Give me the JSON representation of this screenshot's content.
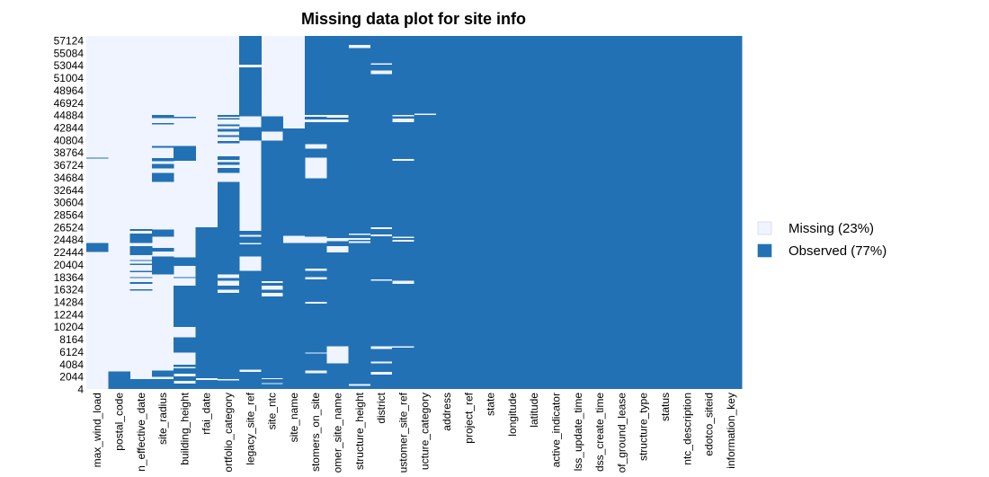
{
  "chart_data": {
    "type": "heatmap",
    "title": "Missing data plot for site info",
    "xlabel": "",
    "ylabel": "",
    "colors": {
      "missing": "#f0f4ff",
      "observed": "#2271b4"
    },
    "legend": {
      "placement": "right",
      "entries": [
        {
          "label": "Missing (23%)",
          "status": "missing"
        },
        {
          "label": "Observed (77%)",
          "status": "observed"
        }
      ]
    },
    "y_ticks": [
      "57124",
      "55084",
      "53044",
      "51004",
      "48964",
      "46924",
      "44884",
      "42844",
      "40804",
      "38764",
      "36724",
      "34684",
      "32644",
      "30604",
      "28564",
      "26524",
      "24484",
      "22444",
      "20404",
      "18364",
      "16324",
      "14284",
      "12244",
      "10204",
      "8164",
      "6124",
      "4084",
      "2044",
      "4"
    ],
    "y_range": [
      4,
      58000
    ],
    "columns": [
      {
        "name": "max_wind_load",
        "observed": [
          [
            22500,
            24000
          ],
          [
            37900,
            38000
          ]
        ]
      },
      {
        "name": "postal_code",
        "observed": [
          [
            0,
            2900
          ]
        ]
      },
      {
        "name": "n_effective_date",
        "observed": [
          [
            0,
            1600
          ],
          [
            16200,
            16400
          ],
          [
            17300,
            17600
          ],
          [
            18200,
            18400
          ],
          [
            19200,
            19400
          ],
          [
            20400,
            20600
          ],
          [
            21000,
            21200
          ],
          [
            22000,
            23500
          ],
          [
            24000,
            25500
          ],
          [
            26000,
            26300
          ]
        ]
      },
      {
        "name": "site_radius",
        "observed": [
          [
            0,
            1600
          ],
          [
            2000,
            3000
          ],
          [
            18800,
            21800
          ],
          [
            22600,
            23200
          ],
          [
            25000,
            26200
          ],
          [
            34000,
            35500
          ],
          [
            36200,
            37000
          ],
          [
            37400,
            37900
          ],
          [
            39600,
            39900
          ],
          [
            43500,
            43700
          ],
          [
            44500,
            45000
          ]
        ]
      },
      {
        "name": "building_height",
        "observed": [
          [
            0,
            900
          ],
          [
            1300,
            2100
          ],
          [
            2500,
            3400
          ],
          [
            3600,
            4000
          ],
          [
            6000,
            8500
          ],
          [
            10200,
            17000
          ],
          [
            18200,
            18400
          ],
          [
            20200,
            21600
          ],
          [
            37500,
            39900
          ],
          [
            44500,
            44700
          ]
        ]
      },
      {
        "name": "rfai_date",
        "observed": [
          [
            0,
            1500
          ],
          [
            1800,
            26600
          ]
        ]
      },
      {
        "name": "ortfolio_category",
        "observed": [
          [
            0,
            1400
          ],
          [
            1600,
            15800
          ],
          [
            16300,
            17000
          ],
          [
            17800,
            18200
          ],
          [
            18800,
            34000
          ],
          [
            35500,
            36300
          ],
          [
            36800,
            37300
          ],
          [
            37600,
            38200
          ],
          [
            40400,
            40700
          ],
          [
            41400,
            41700
          ],
          [
            42300,
            42700
          ],
          [
            43200,
            43500
          ],
          [
            44300,
            44500
          ],
          [
            44700,
            45000
          ]
        ]
      },
      {
        "name": "legacy_site_ref",
        "observed": [
          [
            0,
            2800
          ],
          [
            3200,
            19400
          ],
          [
            21800,
            23800
          ],
          [
            24000,
            25000
          ],
          [
            25300,
            26000
          ],
          [
            40800,
            43000
          ],
          [
            44800,
            52800
          ],
          [
            53300,
            58000
          ]
        ]
      },
      {
        "name": "site_ntc",
        "observed": [
          [
            0,
            800
          ],
          [
            1000,
            1600
          ],
          [
            1800,
            15200
          ],
          [
            15800,
            16300
          ],
          [
            17000,
            17400
          ],
          [
            17700,
            40800
          ],
          [
            42300,
            44800
          ]
        ]
      },
      {
        "name": "site_name",
        "observed": [
          [
            0,
            24000
          ],
          [
            25200,
            42800
          ]
        ]
      },
      {
        "name": "stomers_on_site",
        "observed": [
          [
            0,
            2600
          ],
          [
            3000,
            5800
          ],
          [
            6000,
            14000
          ],
          [
            14300,
            18000
          ],
          [
            18400,
            19400
          ],
          [
            19800,
            24000
          ],
          [
            25000,
            34600
          ],
          [
            38000,
            39500
          ],
          [
            40200,
            43800
          ],
          [
            44300,
            44700
          ],
          [
            45000,
            58000
          ]
        ]
      },
      {
        "name": "omer_site_name",
        "observed": [
          [
            0,
            4200
          ],
          [
            7000,
            22400
          ],
          [
            23500,
            24300
          ],
          [
            24800,
            43800
          ],
          [
            44300,
            44600
          ],
          [
            45000,
            58000
          ]
        ]
      },
      {
        "name": "structure_height",
        "observed": [
          [
            0,
            500
          ],
          [
            800,
            24000
          ],
          [
            24300,
            24500
          ],
          [
            24800,
            25300
          ],
          [
            25500,
            56000
          ],
          [
            56500,
            58000
          ]
        ]
      },
      {
        "name": "district",
        "observed": [
          [
            0,
            2400
          ],
          [
            2800,
            4200
          ],
          [
            4500,
            6600
          ],
          [
            7000,
            17800
          ],
          [
            18000,
            25100
          ],
          [
            25400,
            26300
          ],
          [
            26600,
            51700
          ],
          [
            52300,
            53300
          ],
          [
            53500,
            58000
          ]
        ]
      },
      {
        "name": "ustomer_site_ref",
        "observed": [
          [
            0,
            6800
          ],
          [
            7000,
            17300
          ],
          [
            17800,
            24200
          ],
          [
            24500,
            24800
          ],
          [
            25000,
            37500
          ],
          [
            37800,
            43800
          ],
          [
            44400,
            44800
          ],
          [
            45000,
            58000
          ]
        ]
      },
      {
        "name": "ucture_category",
        "observed": [
          [
            0,
            45000
          ],
          [
            45200,
            58000
          ]
        ]
      },
      {
        "name": "address",
        "observed": [
          [
            0,
            58000
          ]
        ]
      },
      {
        "name": "project_ref",
        "observed": [
          [
            0,
            58000
          ]
        ]
      },
      {
        "name": "state",
        "observed": [
          [
            0,
            58000
          ]
        ]
      },
      {
        "name": "longitude",
        "observed": [
          [
            0,
            58000
          ]
        ]
      },
      {
        "name": "latitude",
        "observed": [
          [
            0,
            58000
          ]
        ]
      },
      {
        "name": "active_indicator",
        "observed": [
          [
            0,
            58000
          ]
        ]
      },
      {
        "name": "lss_update_time",
        "observed": [
          [
            0,
            58000
          ]
        ]
      },
      {
        "name": "dss_create_time",
        "observed": [
          [
            0,
            58000
          ]
        ]
      },
      {
        "name": "of_ground_lease",
        "observed": [
          [
            0,
            58000
          ]
        ]
      },
      {
        "name": "structure_type",
        "observed": [
          [
            0,
            58000
          ]
        ]
      },
      {
        "name": "status",
        "observed": [
          [
            0,
            58000
          ]
        ]
      },
      {
        "name": "ntc_description",
        "observed": [
          [
            0,
            58000
          ]
        ]
      },
      {
        "name": "edotco_siteid",
        "observed": [
          [
            0,
            58000
          ]
        ]
      },
      {
        "name": "information_key",
        "observed": [
          [
            0,
            58000
          ]
        ]
      }
    ]
  }
}
